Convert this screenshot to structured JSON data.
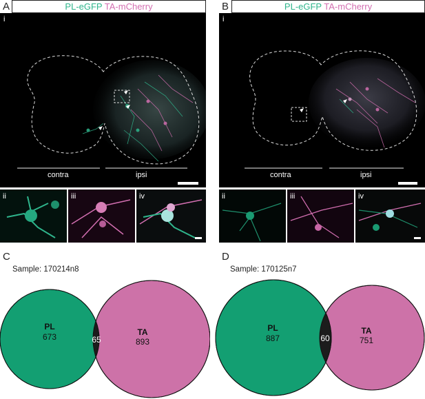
{
  "panelA": {
    "letter": "A",
    "header_green": "PL-eGFP",
    "header_magenta": "TA-mCherry",
    "main_label": "i",
    "contra_label": "contra",
    "ipsi_label": "ipsi",
    "insets": [
      "ii",
      "iii",
      "iv"
    ]
  },
  "panelB": {
    "letter": "B",
    "header_green": "PL-eGFP",
    "header_magenta": "TA-mCherry",
    "main_label": "i",
    "contra_label": "contra",
    "ipsi_label": "ipsi",
    "insets": [
      "ii",
      "iii",
      "iv"
    ]
  },
  "panelC": {
    "letter": "C",
    "sample": "Sample: 170214n8",
    "pl_label": "PL",
    "ta_label": "TA"
  },
  "panelD": {
    "letter": "D",
    "sample": "Sample: 170125n7",
    "pl_label": "PL",
    "ta_label": "TA"
  },
  "colors": {
    "pl_green": "#139f72",
    "ta_pink": "#cd72a8",
    "overlap": "#1c1c1c"
  },
  "chart_data": [
    {
      "type": "venn",
      "sample": "Sample: 170214n8",
      "sets": [
        {
          "name": "PL",
          "only": 673
        },
        {
          "name": "TA",
          "only": 893
        }
      ],
      "overlap": 65
    },
    {
      "type": "venn",
      "sample": "Sample: 170125n7",
      "sets": [
        {
          "name": "PL",
          "only": 887
        },
        {
          "name": "TA",
          "only": 751
        }
      ],
      "overlap": 60
    }
  ]
}
